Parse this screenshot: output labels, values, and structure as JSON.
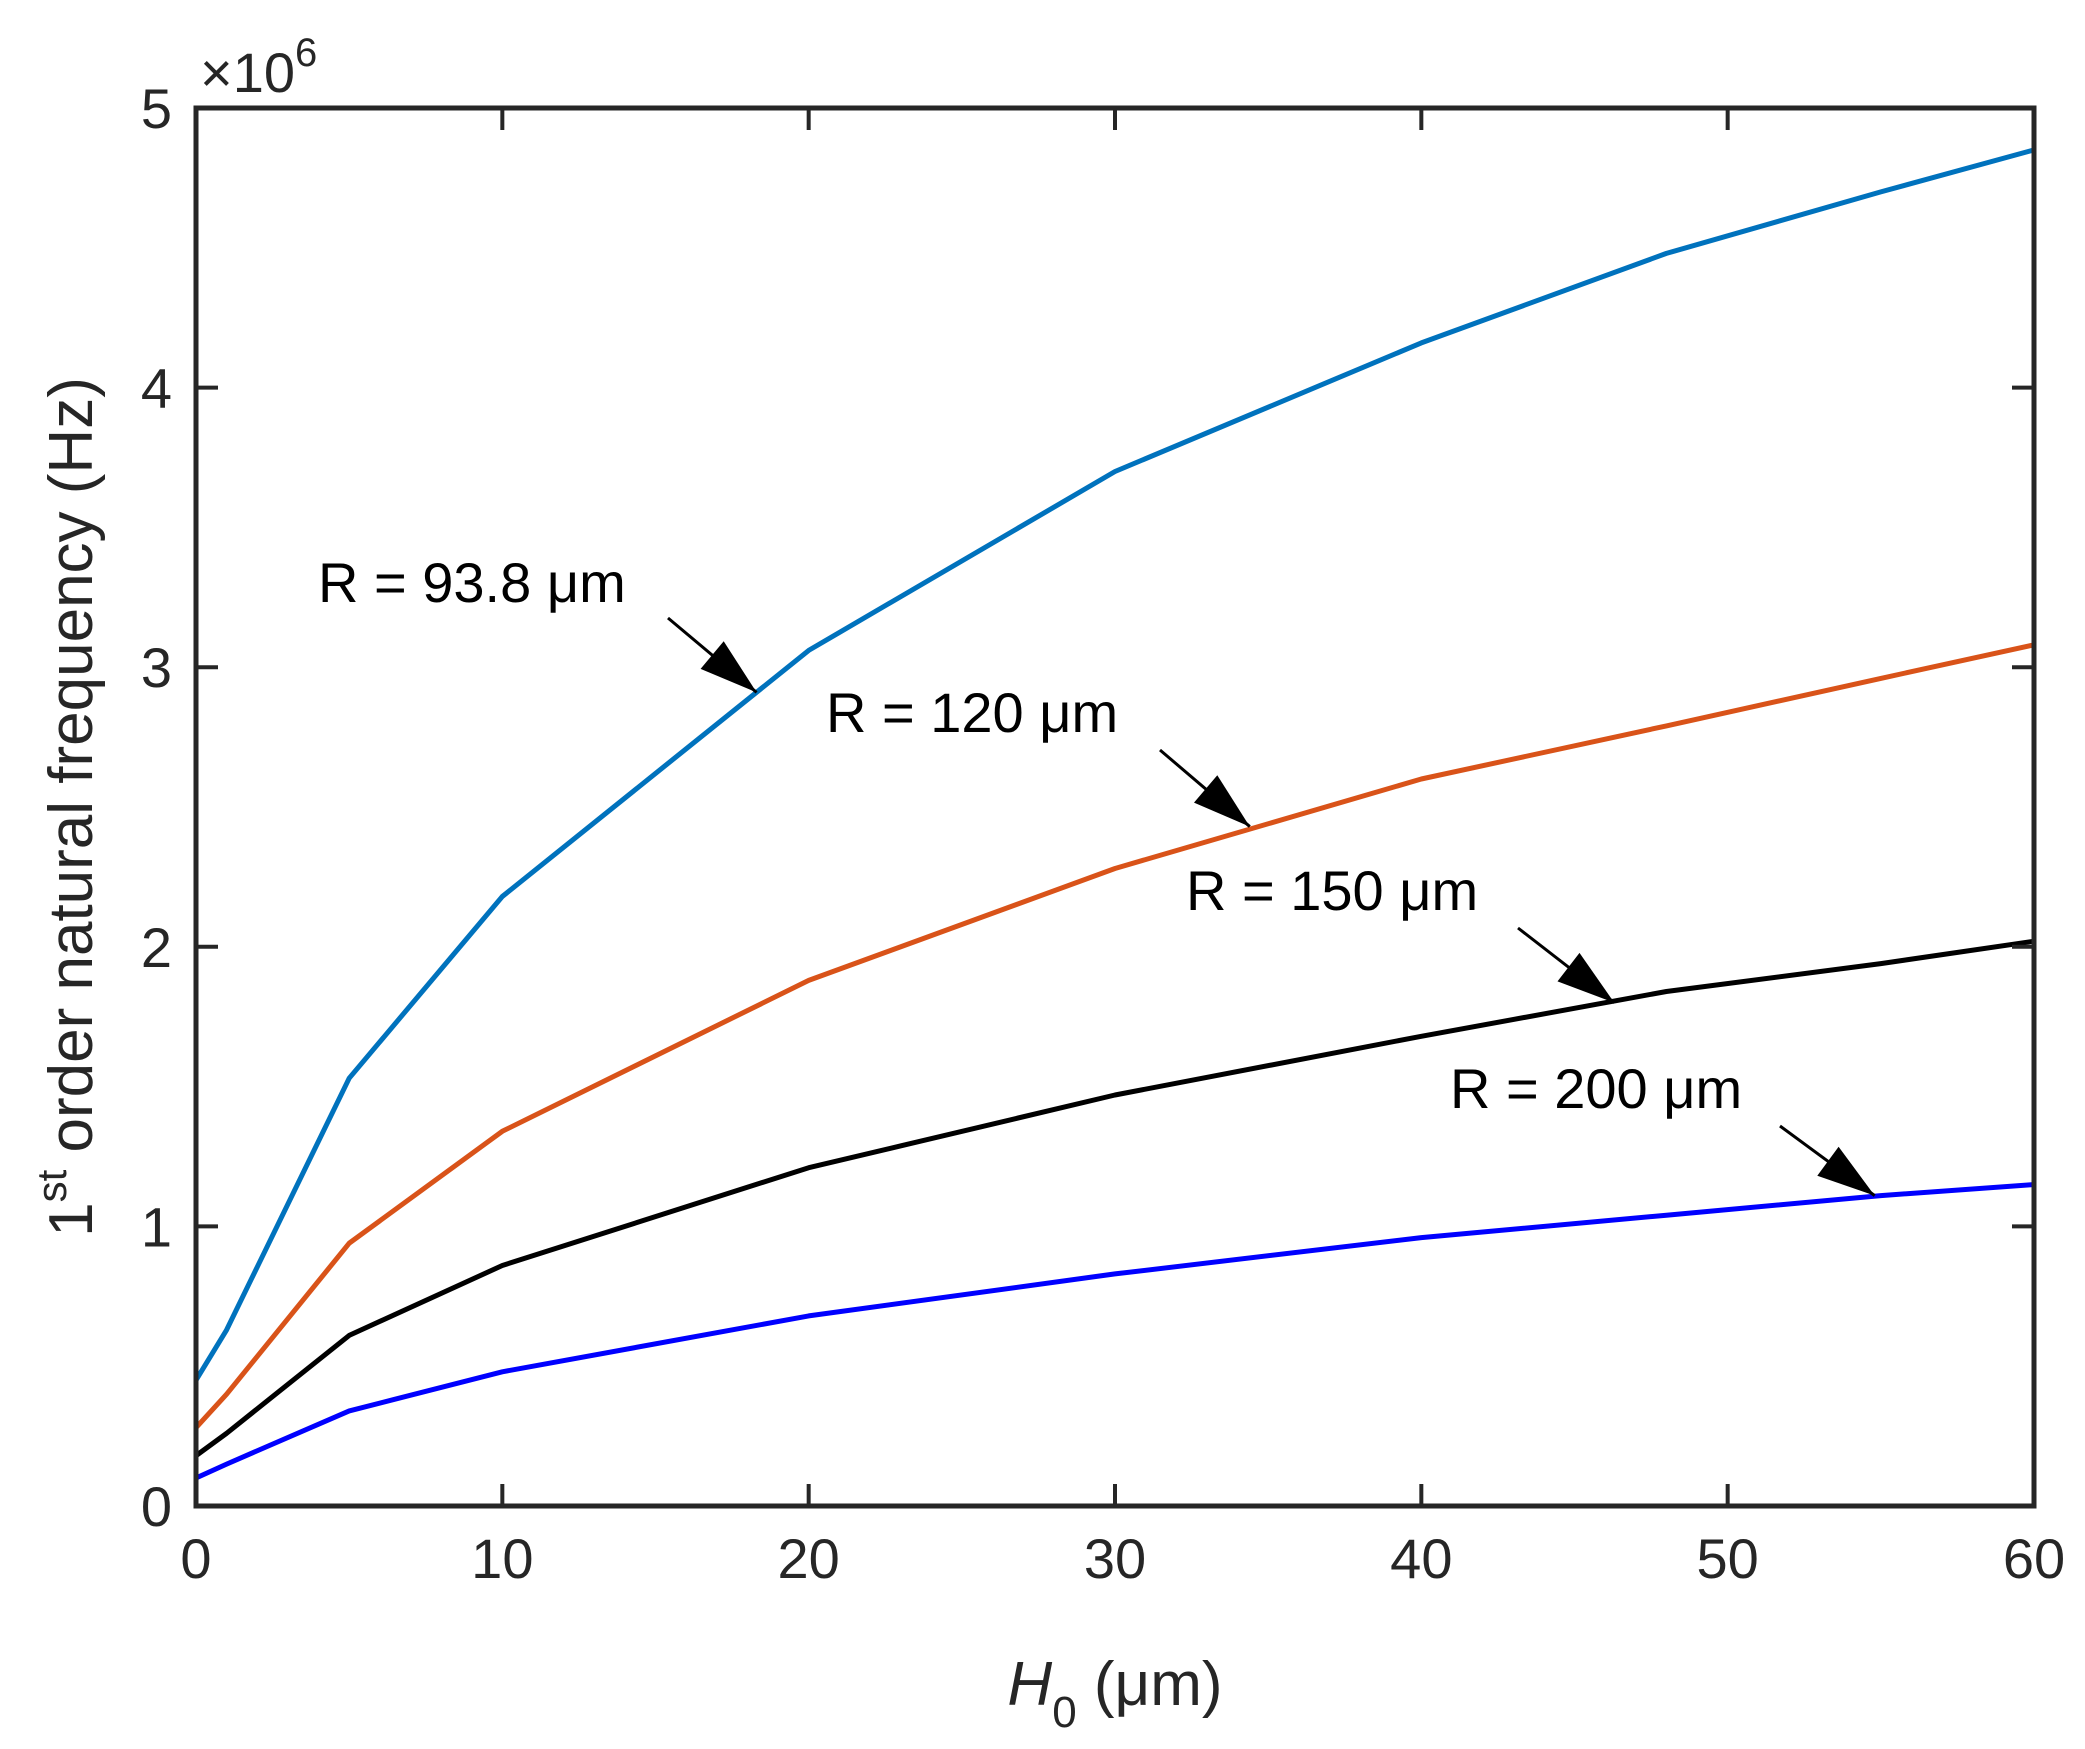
{
  "chart_data": {
    "type": "line",
    "title": "",
    "xlabel_main": "H",
    "xlabel_sub": "0",
    "xlabel_unit": " (μm)",
    "ylabel_prefix": "1",
    "ylabel_sup": "st",
    "ylabel_rest": " order natural frequency (Hz)",
    "y_exponent_prefix": "×10",
    "y_exponent_power": "6",
    "xlim": [
      0,
      60
    ],
    "ylim": [
      0,
      5
    ],
    "x_ticks": [
      0,
      10,
      20,
      30,
      40,
      50,
      60
    ],
    "x_tick_labels": [
      "0",
      "10",
      "20",
      "30",
      "40",
      "50",
      "60"
    ],
    "y_ticks": [
      0,
      1,
      2,
      3,
      4,
      5
    ],
    "y_tick_labels": [
      "0",
      "1",
      "2",
      "3",
      "4",
      "5"
    ],
    "grid": false,
    "x": [
      0,
      1,
      5,
      10,
      20,
      30,
      40,
      48,
      55,
      60
    ],
    "series": [
      {
        "name": "R = 93.8 μm",
        "color": "#0072BD",
        "values": [
          0.45,
          0.63,
          1.53,
          2.18,
          3.06,
          3.7,
          4.16,
          4.48,
          4.7,
          4.85
        ]
      },
      {
        "name": "R = 120 μm",
        "color": "#D95319",
        "values": [
          0.28,
          0.4,
          0.94,
          1.34,
          1.88,
          2.28,
          2.6,
          2.79,
          2.96,
          3.08
        ]
      },
      {
        "name": "R = 150 μm",
        "color": "#000000",
        "values": [
          0.18,
          0.26,
          0.61,
          0.86,
          1.21,
          1.47,
          1.68,
          1.84,
          1.94,
          2.02
        ]
      },
      {
        "name": "R = 200 μm",
        "color": "#0000FF",
        "values": [
          0.1,
          0.15,
          0.34,
          0.48,
          0.68,
          0.83,
          0.96,
          1.04,
          1.11,
          1.15
        ]
      }
    ],
    "annotations": [
      {
        "text": "R = 93.8 μm",
        "arrow_to": [
          18.3,
          2.91
        ]
      },
      {
        "text": "R = 120 μm",
        "arrow_to": [
          34.4,
          2.43
        ]
      },
      {
        "text": "R = 150 μm",
        "arrow_to": [
          46.3,
          1.8
        ]
      },
      {
        "text": "R = 200 μm",
        "arrow_to": [
          54.8,
          1.11
        ]
      }
    ]
  }
}
